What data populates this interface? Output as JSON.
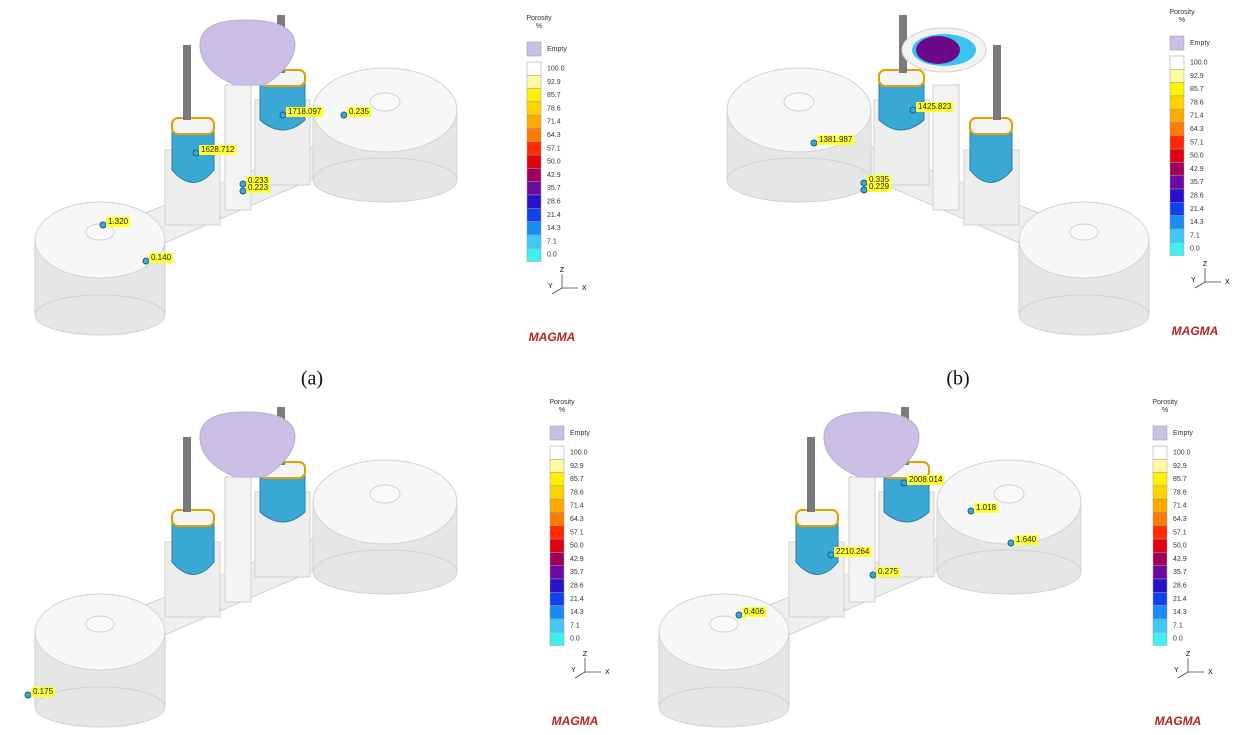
{
  "captions": [
    "(a)",
    "(b)"
  ],
  "legend": {
    "title": "Porosity",
    "unit": "%",
    "entries": [
      {
        "label": "Empty",
        "color": "#cbbfe6"
      },
      {
        "label": "100.0",
        "color": "#ffffff"
      },
      {
        "label": "92.9",
        "color": "#fffaa0"
      },
      {
        "label": "85.7",
        "color": "#fff200"
      },
      {
        "label": "78.6",
        "color": "#ffd400"
      },
      {
        "label": "71.4",
        "color": "#ffaa00"
      },
      {
        "label": "64.3",
        "color": "#ff7a00"
      },
      {
        "label": "57.1",
        "color": "#ff2a00"
      },
      {
        "label": "50.0",
        "color": "#e00010"
      },
      {
        "label": "42.9",
        "color": "#a0005a"
      },
      {
        "label": "35.7",
        "color": "#6a0aa0"
      },
      {
        "label": "28.6",
        "color": "#2a10c8"
      },
      {
        "label": "21.4",
        "color": "#1040f0"
      },
      {
        "label": "14.3",
        "color": "#1a8af5"
      },
      {
        "label": "7.1",
        "color": "#40c8f8"
      },
      {
        "label": "0.0",
        "color": "#40f0f0"
      }
    ]
  },
  "axes": {
    "x": "X",
    "y": "Y",
    "z": "Z"
  },
  "logo": "MAGMA",
  "panels": [
    {
      "callouts": [
        "1718.097",
        "0.235",
        "1628.712",
        "0.233",
        "0.223",
        "1.320",
        "0.140"
      ]
    },
    {
      "callouts": [
        "1425.823",
        "1381.987",
        "0.335",
        "0.229"
      ]
    },
    {
      "callouts": [
        "0.175"
      ]
    },
    {
      "callouts": [
        "2008.014",
        "1.018",
        "2210.264",
        "1.640",
        "0.275",
        "0.406"
      ]
    }
  ]
}
